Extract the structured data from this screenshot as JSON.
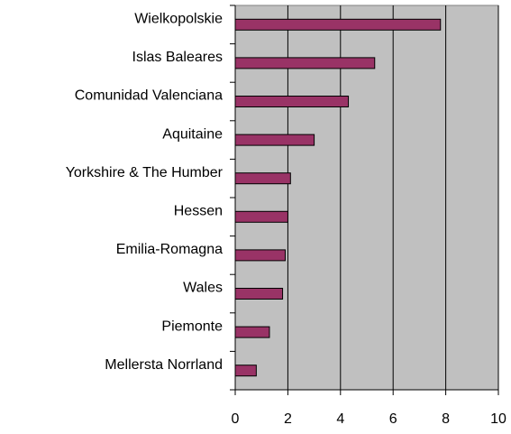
{
  "chart_data": {
    "type": "barh",
    "categories": [
      "Wielkopolskie",
      "Islas Baleares",
      "Comunidad Valenciana",
      "Aquitaine",
      "Yorkshire & The Humber",
      "Hessen",
      "Emilia-Romagna",
      "Wales",
      "Piemonte",
      "Mellersta Norrland"
    ],
    "values": [
      7.8,
      5.3,
      4.3,
      3.0,
      2.1,
      2.0,
      1.9,
      1.8,
      1.3,
      0.8
    ],
    "color": "#993366",
    "xlim": [
      0,
      10
    ],
    "xticks": [
      0,
      2,
      4,
      6,
      8,
      10
    ],
    "grid": true
  }
}
